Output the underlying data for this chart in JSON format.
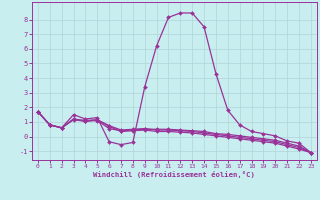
{
  "background_color": "#c8eef0",
  "grid_color": "#b0d4d8",
  "line_color": "#993399",
  "xlabel": "Windchill (Refroidissement éolien,°C)",
  "xlim": [
    -0.5,
    23.5
  ],
  "ylim": [
    -1.6,
    9.2
  ],
  "yticks": [
    -1,
    0,
    1,
    2,
    3,
    4,
    5,
    6,
    7,
    8
  ],
  "xticks": [
    0,
    1,
    2,
    3,
    4,
    5,
    6,
    7,
    8,
    9,
    10,
    11,
    12,
    13,
    14,
    15,
    16,
    17,
    18,
    19,
    20,
    21,
    22,
    23
  ],
  "lines": [
    {
      "x": [
        0,
        1,
        2,
        3,
        4,
        5,
        6,
        7,
        8,
        9,
        10,
        11,
        12,
        13,
        14,
        15,
        16,
        17,
        18,
        19,
        20,
        21,
        22,
        23
      ],
      "y": [
        1.7,
        0.8,
        0.6,
        1.5,
        1.2,
        1.3,
        -0.35,
        -0.55,
        -0.4,
        3.4,
        6.2,
        8.15,
        8.45,
        8.45,
        7.5,
        4.3,
        1.8,
        0.8,
        0.35,
        0.2,
        0.05,
        -0.3,
        -0.45,
        -1.1
      ]
    },
    {
      "x": [
        0,
        1,
        2,
        3,
        4,
        5,
        6,
        7,
        8,
        9,
        10,
        11,
        12,
        13,
        14,
        15,
        16,
        17,
        18,
        19,
        20,
        21,
        22,
        23
      ],
      "y": [
        1.7,
        0.8,
        0.6,
        1.2,
        1.05,
        1.1,
        0.55,
        0.4,
        0.45,
        0.5,
        0.5,
        0.5,
        0.45,
        0.4,
        0.35,
        0.2,
        0.15,
        0.05,
        -0.05,
        -0.15,
        -0.25,
        -0.45,
        -0.65,
        -1.1
      ]
    },
    {
      "x": [
        0,
        1,
        2,
        3,
        4,
        5,
        6,
        7,
        8,
        9,
        10,
        11,
        12,
        13,
        14,
        15,
        16,
        17,
        18,
        19,
        20,
        21,
        22,
        23
      ],
      "y": [
        1.7,
        0.8,
        0.6,
        1.2,
        1.1,
        1.15,
        0.75,
        0.45,
        0.5,
        0.55,
        0.45,
        0.45,
        0.4,
        0.35,
        0.25,
        0.15,
        0.05,
        -0.05,
        -0.15,
        -0.25,
        -0.35,
        -0.55,
        -0.75,
        -1.1
      ]
    },
    {
      "x": [
        0,
        1,
        2,
        3,
        4,
        5,
        6,
        7,
        8,
        9,
        10,
        11,
        12,
        13,
        14,
        15,
        16,
        17,
        18,
        19,
        20,
        21,
        22,
        23
      ],
      "y": [
        1.7,
        0.8,
        0.6,
        1.15,
        1.05,
        1.15,
        0.7,
        0.35,
        0.4,
        0.45,
        0.35,
        0.35,
        0.3,
        0.25,
        0.15,
        0.05,
        -0.05,
        -0.15,
        -0.25,
        -0.35,
        -0.45,
        -0.65,
        -0.85,
        -1.1
      ]
    }
  ],
  "marker": "D",
  "markersize": 2.0,
  "linewidth": 0.9
}
